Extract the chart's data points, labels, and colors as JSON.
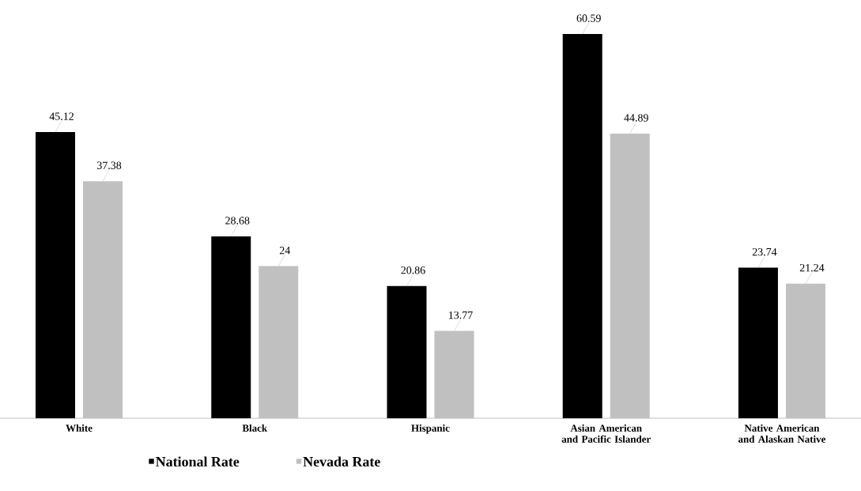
{
  "chart_data": {
    "type": "bar",
    "categories": [
      "White",
      "Black",
      "Hispanic",
      "Asian American and Pacific Islander",
      "Native American and Alaskan Native"
    ],
    "series": [
      {
        "name": "National Rate",
        "color": "#000000",
        "values": [
          45.12,
          28.68,
          20.86,
          60.59,
          23.74
        ]
      },
      {
        "name": "Nevada Rate",
        "color": "#c0c0c0",
        "values": [
          37.38,
          24,
          13.77,
          44.89,
          21.24
        ]
      }
    ],
    "data_labels": true,
    "legend": "bottom left"
  }
}
